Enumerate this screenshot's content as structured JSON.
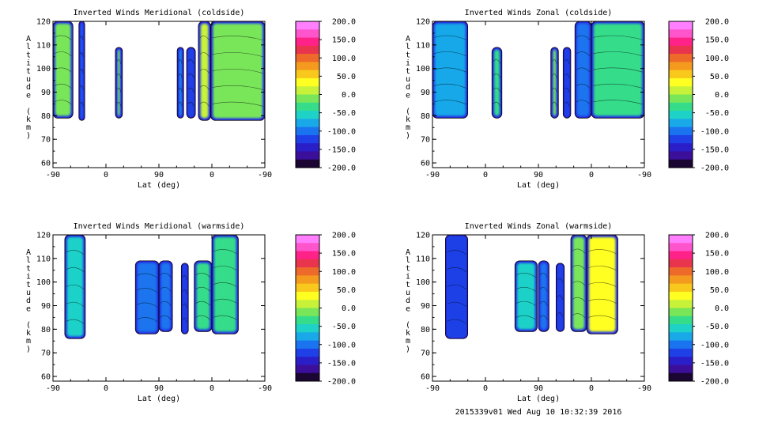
{
  "footer": {
    "text": "2015339v01 Wed Aug 10 10:32:39 2016"
  },
  "colorbar": {
    "tick_labels": [
      "200.0",
      "150.0",
      "100.0",
      "50.0",
      "0.0",
      "-50.0",
      "-100.0",
      "-150.0",
      "-200.0"
    ],
    "colors": [
      "#ff7fff",
      "#ff55cc",
      "#ff2288",
      "#e8354d",
      "#ee6a2a",
      "#f49a1e",
      "#f9c81d",
      "#ffff22",
      "#c8f23a",
      "#79e65a",
      "#35dc8a",
      "#1fd2c8",
      "#19a8e8",
      "#1a74ef",
      "#1f40e6",
      "#2a1ec8",
      "#3c0f9a",
      "#1a0533"
    ]
  },
  "chart_data": [
    {
      "type": "heatmap",
      "title": "Inverted Winds Meridional (coldside)",
      "xlabel": "Lat (deg)",
      "ylabel": "Altitude (km)",
      "x_tick_labels": [
        "-90",
        "0",
        "90",
        "0",
        "-90"
      ],
      "y_tick_labels": [
        "60",
        "70",
        "80",
        "90",
        "100",
        "110",
        "120"
      ],
      "ylim": [
        58,
        120
      ],
      "colorbar_range": [
        -200,
        200
      ],
      "blocks": [
        {
          "x": [
            -90,
            -56
          ],
          "y": [
            79,
            120
          ],
          "value": -20
        },
        {
          "x": [
            -46,
            -36
          ],
          "y": [
            78,
            120
          ],
          "value": -110
        },
        {
          "x": [
            16,
            28
          ],
          "y": [
            79,
            109
          ],
          "value": -10
        },
        {
          "x": [
            121,
            132
          ],
          "y": [
            79,
            109
          ],
          "value": -70
        },
        {
          "x": [
            137,
            152
          ],
          "y": [
            79,
            109
          ],
          "value": -120
        },
        {
          "x": [
            157,
            178
          ],
          "y": [
            78,
            120
          ],
          "value": 10
        },
        {
          "x": [
            178,
            270
          ],
          "y": [
            78,
            120
          ],
          "value": -10
        }
      ]
    },
    {
      "type": "heatmap",
      "title": "Inverted Winds Zonal (coldside)",
      "xlabel": "Lat (deg)",
      "ylabel": "Altitude (km)",
      "x_tick_labels": [
        "-90",
        "0",
        "90",
        "0",
        "-90"
      ],
      "y_tick_labels": [
        "60",
        "70",
        "80",
        "90",
        "100",
        "110",
        "120"
      ],
      "ylim": [
        58,
        120
      ],
      "colorbar_range": [
        -200,
        200
      ],
      "blocks": [
        {
          "x": [
            -90,
            -30
          ],
          "y": [
            79,
            120
          ],
          "value": -70
        },
        {
          "x": [
            11,
            28
          ],
          "y": [
            79,
            109
          ],
          "value": -40
        },
        {
          "x": [
            111,
            124
          ],
          "y": [
            79,
            109
          ],
          "value": -20
        },
        {
          "x": [
            132,
            145
          ],
          "y": [
            79,
            109
          ],
          "value": -130
        },
        {
          "x": [
            152,
            180
          ],
          "y": [
            79,
            120
          ],
          "value": -90
        },
        {
          "x": [
            180,
            270
          ],
          "y": [
            79,
            120
          ],
          "value": -40
        }
      ]
    },
    {
      "type": "heatmap",
      "title": "Inverted Winds Meridional (warmside)",
      "xlabel": "Lat (deg)",
      "ylabel": "Altitude (km)",
      "x_tick_labels": [
        "-90",
        "0",
        "90",
        "0",
        "-90"
      ],
      "y_tick_labels": [
        "60",
        "70",
        "80",
        "90",
        "100",
        "110",
        "120"
      ],
      "ylim": [
        58,
        120
      ],
      "colorbar_range": [
        -200,
        200
      ],
      "blocks": [
        {
          "x": [
            -70,
            -35
          ],
          "y": [
            76,
            120
          ],
          "value": -50
        },
        {
          "x": [
            50,
            90
          ],
          "y": [
            78,
            109
          ],
          "value": -110
        },
        {
          "x": [
            90,
            113
          ],
          "y": [
            79,
            109
          ],
          "value": -100
        },
        {
          "x": [
            128,
            140
          ],
          "y": [
            78,
            108
          ],
          "value": -120
        },
        {
          "x": [
            150,
            180
          ],
          "y": [
            79,
            109
          ],
          "value": -30
        },
        {
          "x": [
            180,
            225
          ],
          "y": [
            78,
            120
          ],
          "value": -30
        }
      ]
    },
    {
      "type": "heatmap",
      "title": "Inverted Winds Zonal (warmside)",
      "xlabel": "Lat (deg)",
      "ylabel": "Altitude (km)",
      "x_tick_labels": [
        "-90",
        "0",
        "90",
        "0",
        "-90"
      ],
      "y_tick_labels": [
        "60",
        "70",
        "80",
        "90",
        "100",
        "110",
        "120"
      ],
      "ylim": [
        58,
        120
      ],
      "colorbar_range": [
        -200,
        200
      ],
      "blocks": [
        {
          "x": [
            -68,
            -30
          ],
          "y": [
            76,
            120
          ],
          "value": -120
        },
        {
          "x": [
            50,
            88
          ],
          "y": [
            79,
            109
          ],
          "value": -50
        },
        {
          "x": [
            90,
            108
          ],
          "y": [
            79,
            109
          ],
          "value": -100
        },
        {
          "x": [
            120,
            134
          ],
          "y": [
            79,
            108
          ],
          "value": -120
        },
        {
          "x": [
            145,
            172
          ],
          "y": [
            79,
            120
          ],
          "value": -10
        },
        {
          "x": [
            172,
            225
          ],
          "y": [
            78,
            120
          ],
          "value": 40
        }
      ]
    }
  ]
}
